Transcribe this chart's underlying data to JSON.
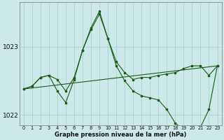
{
  "xlabel": "Graphe pression niveau de la mer (hPa)",
  "bg_color": "#cce8e8",
  "grid_color": "#aacccc",
  "line_color": "#1a5c1a",
  "x_ticks": [
    0,
    1,
    2,
    3,
    4,
    5,
    6,
    7,
    8,
    9,
    10,
    11,
    12,
    13,
    14,
    15,
    16,
    17,
    18,
    19,
    20,
    21,
    22,
    23
  ],
  "ylim": [
    1021.85,
    1023.65
  ],
  "yticks": [
    1022,
    1023
  ],
  "series1_x": [
    0,
    1,
    2,
    3,
    4,
    5,
    6,
    7,
    8,
    9,
    10,
    11,
    12,
    13,
    14,
    15,
    16,
    17,
    18,
    19,
    20,
    21,
    22,
    23
  ],
  "series1_y": [
    1022.38,
    1022.42,
    1022.55,
    1022.58,
    1022.52,
    1022.35,
    1022.55,
    1022.95,
    1023.25,
    1023.48,
    1023.12,
    1022.78,
    1022.62,
    1022.52,
    1022.55,
    1022.55,
    1022.58,
    1022.6,
    1022.62,
    1022.68,
    1022.72,
    1022.72,
    1022.58,
    1022.72
  ],
  "series2_x": [
    0,
    1,
    2,
    3,
    4,
    5,
    6,
    7,
    8,
    9,
    10,
    11,
    12,
    13,
    14,
    15,
    16,
    17,
    18,
    19,
    20,
    21,
    22,
    23
  ],
  "series2_y": [
    1022.38,
    1022.42,
    1022.55,
    1022.58,
    1022.35,
    1022.18,
    1022.52,
    1022.95,
    1023.28,
    1023.52,
    1023.12,
    1022.72,
    1022.5,
    1022.35,
    1022.28,
    1022.25,
    1022.22,
    1022.08,
    1021.88,
    1021.78,
    1021.82,
    1021.82,
    1022.08,
    1022.72
  ],
  "series3_x": [
    0,
    23
  ],
  "series3_y": [
    1022.38,
    1022.72
  ]
}
